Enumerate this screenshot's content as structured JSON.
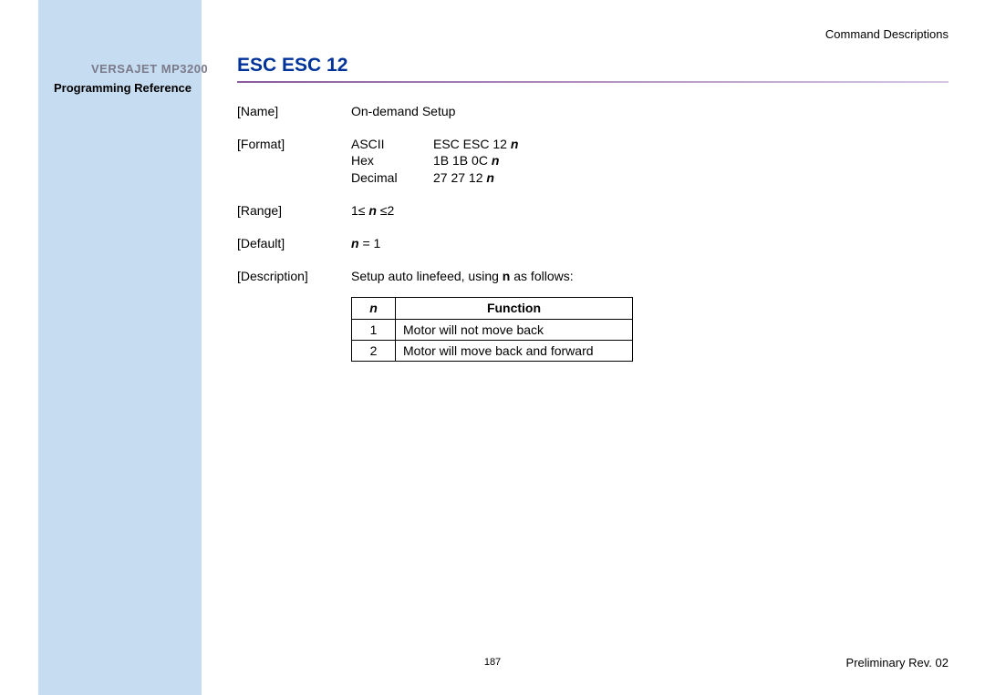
{
  "sidebar": {
    "product": "VERSAJET MP3200",
    "subtitle": "Programming Reference"
  },
  "header": {
    "section": "Command  Descriptions"
  },
  "command": {
    "title": "ESC ESC 12",
    "name_label": "[Name]",
    "name_value": "On-demand Setup",
    "format_label": "[Format]",
    "format": {
      "ascii_label": "ASCII",
      "ascii_value_prefix": "ESC ESC 12 ",
      "hex_label": "Hex",
      "hex_value_prefix": "1B 1B 0C ",
      "decimal_label": "Decimal",
      "decimal_value_prefix": "27 27 12 ",
      "param_letter": "n"
    },
    "range_label": "[Range]",
    "range_prefix": "1≤ ",
    "range_param": "n",
    "range_suffix": " ≤2",
    "default_label": "[Default]",
    "default_param": "n",
    "default_rest": " = 1",
    "description_label": "[Description]",
    "description_prefix": "Setup auto linefeed, using ",
    "description_bold": "n",
    "description_suffix": " as follows:"
  },
  "table": {
    "header_n": "n",
    "header_function": "Function",
    "rows": [
      {
        "n": "1",
        "fn": "Motor will not move back"
      },
      {
        "n": "2",
        "fn": "Motor will move back and forward"
      }
    ]
  },
  "footer": {
    "page": "187",
    "revision": "Preliminary Rev. 02"
  }
}
